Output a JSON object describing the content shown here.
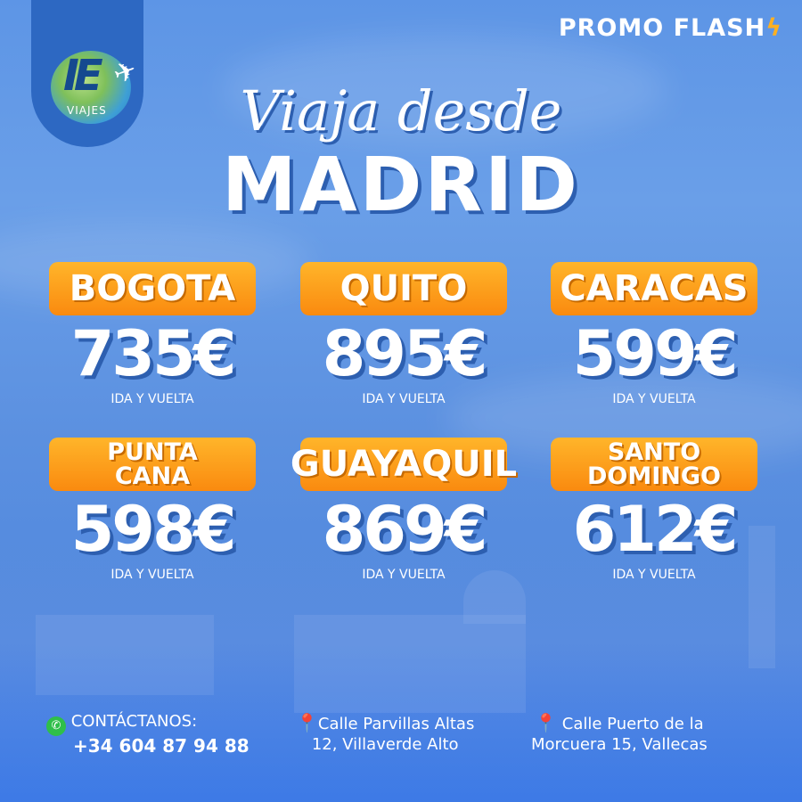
{
  "brand": {
    "logo_text": "IE",
    "logo_sub": "VIAJES"
  },
  "promo": {
    "label": "PROMO FLASH",
    "icon": "lightning-bolt-icon"
  },
  "title": {
    "line1": "Viaja desde",
    "line2": "MADRID"
  },
  "destinations": [
    {
      "city": [
        "BOGOTA"
      ],
      "price": "735€",
      "note": "IDA Y VUELTA"
    },
    {
      "city": [
        "QUITO"
      ],
      "price": "895€",
      "note": "IDA Y VUELTA"
    },
    {
      "city": [
        "CARACAS"
      ],
      "price": "599€",
      "note": "IDA Y VUELTA"
    },
    {
      "city": [
        "PUNTA",
        "CANA"
      ],
      "price": "598€",
      "note": "IDA Y VUELTA"
    },
    {
      "city": [
        "GUAYAQUIL"
      ],
      "price": "869€",
      "note": "IDA Y VUELTA"
    },
    {
      "city": [
        "SANTO",
        "DOMINGO"
      ],
      "price": "612€",
      "note": "IDA Y VUELTA"
    }
  ],
  "footer": {
    "contact_label": "CONTÁCTANOS:",
    "phone": "+34 604 87 94 88",
    "address1": [
      "Calle Parvillas Altas",
      "12, Villaverde Alto"
    ],
    "address2": [
      "Calle Puerto de la",
      "Morcuera 15, Vallecas"
    ]
  },
  "colors": {
    "background": "#5d95e6",
    "badge": "#fa8a0f",
    "logo_tab": "#2d68c2"
  }
}
